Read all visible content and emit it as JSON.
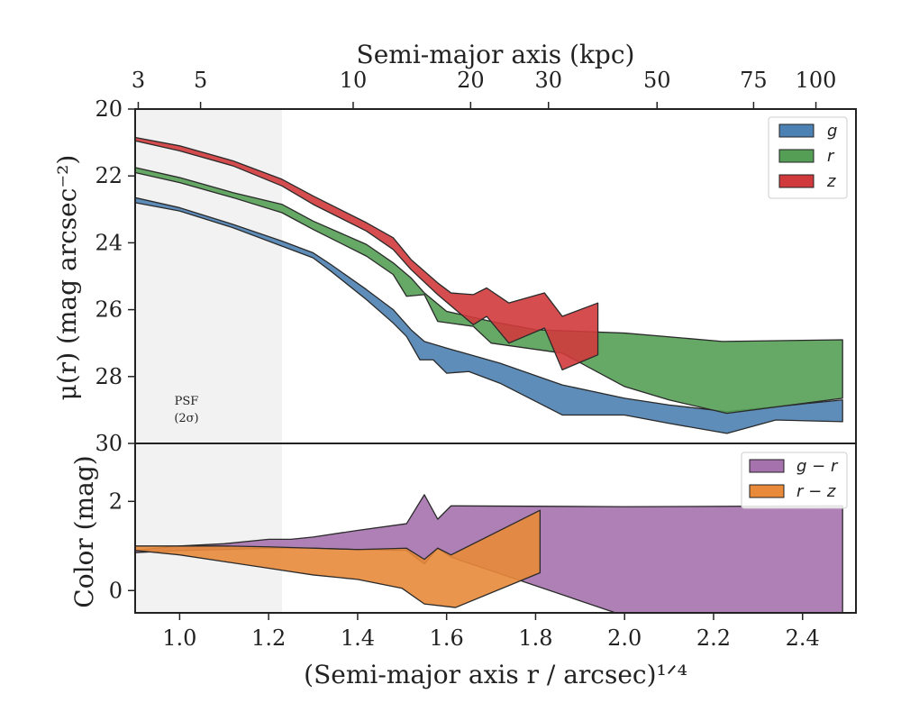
{
  "chart_data": [
    {
      "type": "area",
      "panel": "surface-brightness",
      "ylabel": "μ(r) (mag arcsec⁻²)",
      "ylim": [
        30,
        20
      ],
      "yticks": [
        "20",
        "22",
        "24",
        "26",
        "28",
        "30"
      ],
      "top_xlabel": "Semi-major axis (kpc)",
      "top_xticks": [
        {
          "label": "3",
          "at": 0.907
        },
        {
          "label": "5",
          "at": 1.047
        },
        {
          "label": "10",
          "at": 1.39
        },
        {
          "label": "20",
          "at": 1.654
        },
        {
          "label": "30",
          "at": 1.829
        },
        {
          "label": "50",
          "at": 2.073
        },
        {
          "label": "75",
          "at": 2.29
        },
        {
          "label": "100",
          "at": 2.43
        }
      ],
      "psf_label": [
        "PSF",
        "(2σ)"
      ],
      "legend": "top-right",
      "series": [
        {
          "name": "g",
          "color": "#4c81b3",
          "upper": [
            [
              0.9,
              22.65
            ],
            [
              1.0,
              22.95
            ],
            [
              1.12,
              23.45
            ],
            [
              1.23,
              23.95
            ],
            [
              1.3,
              24.3
            ],
            [
              1.34,
              24.65
            ],
            [
              1.42,
              25.4
            ],
            [
              1.48,
              26.0
            ],
            [
              1.52,
              26.6
            ],
            [
              1.55,
              26.95
            ],
            [
              1.6,
              27.15
            ],
            [
              1.72,
              27.6
            ],
            [
              1.86,
              28.25
            ],
            [
              2.0,
              28.65
            ],
            [
              2.1,
              28.85
            ],
            [
              2.23,
              29.05
            ],
            [
              2.34,
              28.9
            ],
            [
              2.49,
              28.7
            ]
          ],
          "lower": [
            [
              0.9,
              22.8
            ],
            [
              1.0,
              23.05
            ],
            [
              1.12,
              23.55
            ],
            [
              1.23,
              24.1
            ],
            [
              1.3,
              24.45
            ],
            [
              1.34,
              24.85
            ],
            [
              1.42,
              25.7
            ],
            [
              1.48,
              26.4
            ],
            [
              1.51,
              26.8
            ],
            [
              1.54,
              27.5
            ],
            [
              1.57,
              27.5
            ],
            [
              1.6,
              27.9
            ],
            [
              1.65,
              27.85
            ],
            [
              1.72,
              28.2
            ],
            [
              1.86,
              29.15
            ],
            [
              2.0,
              29.15
            ],
            [
              2.1,
              29.4
            ],
            [
              2.23,
              29.7
            ],
            [
              2.34,
              29.3
            ],
            [
              2.49,
              29.35
            ]
          ]
        },
        {
          "name": "r",
          "color": "#559e55",
          "upper": [
            [
              0.9,
              21.75
            ],
            [
              1.0,
              22.05
            ],
            [
              1.12,
              22.5
            ],
            [
              1.23,
              22.85
            ],
            [
              1.3,
              23.35
            ],
            [
              1.42,
              24.05
            ],
            [
              1.48,
              24.6
            ],
            [
              1.52,
              25.05
            ],
            [
              1.55,
              25.5
            ],
            [
              1.6,
              26.05
            ],
            [
              1.7,
              26.35
            ],
            [
              1.8,
              26.6
            ],
            [
              2.0,
              26.7
            ],
            [
              2.22,
              26.95
            ],
            [
              2.49,
              26.9
            ]
          ],
          "lower": [
            [
              0.9,
              21.9
            ],
            [
              1.0,
              22.2
            ],
            [
              1.12,
              22.65
            ],
            [
              1.23,
              23.1
            ],
            [
              1.3,
              23.6
            ],
            [
              1.42,
              24.4
            ],
            [
              1.48,
              24.95
            ],
            [
              1.51,
              25.6
            ],
            [
              1.55,
              25.55
            ],
            [
              1.58,
              26.35
            ],
            [
              1.66,
              26.5
            ],
            [
              1.7,
              27.0
            ],
            [
              1.86,
              27.3
            ],
            [
              2.0,
              28.3
            ],
            [
              2.1,
              28.7
            ],
            [
              2.23,
              29.1
            ],
            [
              2.49,
              28.65
            ]
          ]
        },
        {
          "name": "z",
          "color": "#d03a3c",
          "upper": [
            [
              0.9,
              20.85
            ],
            [
              1.0,
              21.1
            ],
            [
              1.12,
              21.55
            ],
            [
              1.23,
              22.1
            ],
            [
              1.3,
              22.6
            ],
            [
              1.42,
              23.4
            ],
            [
              1.48,
              23.85
            ],
            [
              1.52,
              24.5
            ],
            [
              1.58,
              25.2
            ],
            [
              1.61,
              25.5
            ],
            [
              1.66,
              25.55
            ],
            [
              1.69,
              25.35
            ],
            [
              1.74,
              25.8
            ],
            [
              1.82,
              25.5
            ],
            [
              1.86,
              26.2
            ],
            [
              1.94,
              25.8
            ]
          ],
          "lower": [
            [
              0.9,
              20.95
            ],
            [
              1.0,
              21.25
            ],
            [
              1.12,
              21.7
            ],
            [
              1.23,
              22.3
            ],
            [
              1.3,
              22.85
            ],
            [
              1.42,
              23.65
            ],
            [
              1.48,
              24.2
            ],
            [
              1.52,
              24.8
            ],
            [
              1.58,
              25.55
            ],
            [
              1.66,
              26.45
            ],
            [
              1.69,
              26.2
            ],
            [
              1.74,
              27.0
            ],
            [
              1.82,
              26.55
            ],
            [
              1.86,
              27.8
            ],
            [
              1.94,
              27.35
            ]
          ]
        }
      ]
    },
    {
      "type": "area",
      "panel": "color",
      "ylabel": "Color (mag)",
      "ylim": [
        -0.5,
        3.3
      ],
      "yticks": [
        "0",
        "2"
      ],
      "xlabel": "(Semi-major axis r / arcsec)¹ᐟ⁴",
      "xticks": [
        "1.0",
        "1.2",
        "1.4",
        "1.6",
        "1.8",
        "2.0",
        "2.2",
        "2.4"
      ],
      "xlim": [
        0.9,
        2.52
      ],
      "psf_shade_xmax": 1.23,
      "legend": "top-right",
      "series": [
        {
          "name": "g − r",
          "color": "#a572ad",
          "upper": [
            [
              0.9,
              0.9
            ],
            [
              1.0,
              1.0
            ],
            [
              1.1,
              1.05
            ],
            [
              1.2,
              1.15
            ],
            [
              1.25,
              1.15
            ],
            [
              1.3,
              1.2
            ],
            [
              1.4,
              1.35
            ],
            [
              1.51,
              1.5
            ],
            [
              1.55,
              2.15
            ],
            [
              1.58,
              1.6
            ],
            [
              1.61,
              1.9
            ],
            [
              2.0,
              1.88
            ],
            [
              2.49,
              1.9
            ]
          ],
          "lower": [
            [
              0.9,
              0.85
            ],
            [
              1.0,
              0.9
            ],
            [
              1.1,
              0.92
            ],
            [
              1.2,
              0.95
            ],
            [
              1.3,
              0.95
            ],
            [
              1.4,
              0.92
            ],
            [
              1.51,
              0.9
            ],
            [
              1.55,
              0.6
            ],
            [
              1.58,
              0.95
            ],
            [
              1.61,
              0.75
            ],
            [
              1.98,
              -0.5
            ],
            [
              2.49,
              -0.5
            ]
          ]
        },
        {
          "name": "r − z",
          "color": "#e88a3a",
          "upper": [
            [
              0.9,
              1.0
            ],
            [
              1.0,
              1.0
            ],
            [
              1.1,
              1.0
            ],
            [
              1.2,
              0.98
            ],
            [
              1.3,
              0.95
            ],
            [
              1.4,
              0.92
            ],
            [
              1.51,
              0.95
            ],
            [
              1.55,
              0.7
            ],
            [
              1.58,
              0.95
            ],
            [
              1.61,
              0.8
            ],
            [
              1.81,
              1.8
            ]
          ],
          "lower": [
            [
              0.9,
              0.9
            ],
            [
              1.0,
              0.8
            ],
            [
              1.1,
              0.65
            ],
            [
              1.2,
              0.5
            ],
            [
              1.3,
              0.35
            ],
            [
              1.4,
              0.25
            ],
            [
              1.5,
              0.05
            ],
            [
              1.55,
              -0.3
            ],
            [
              1.62,
              -0.38
            ],
            [
              1.81,
              0.4
            ]
          ]
        }
      ]
    }
  ]
}
